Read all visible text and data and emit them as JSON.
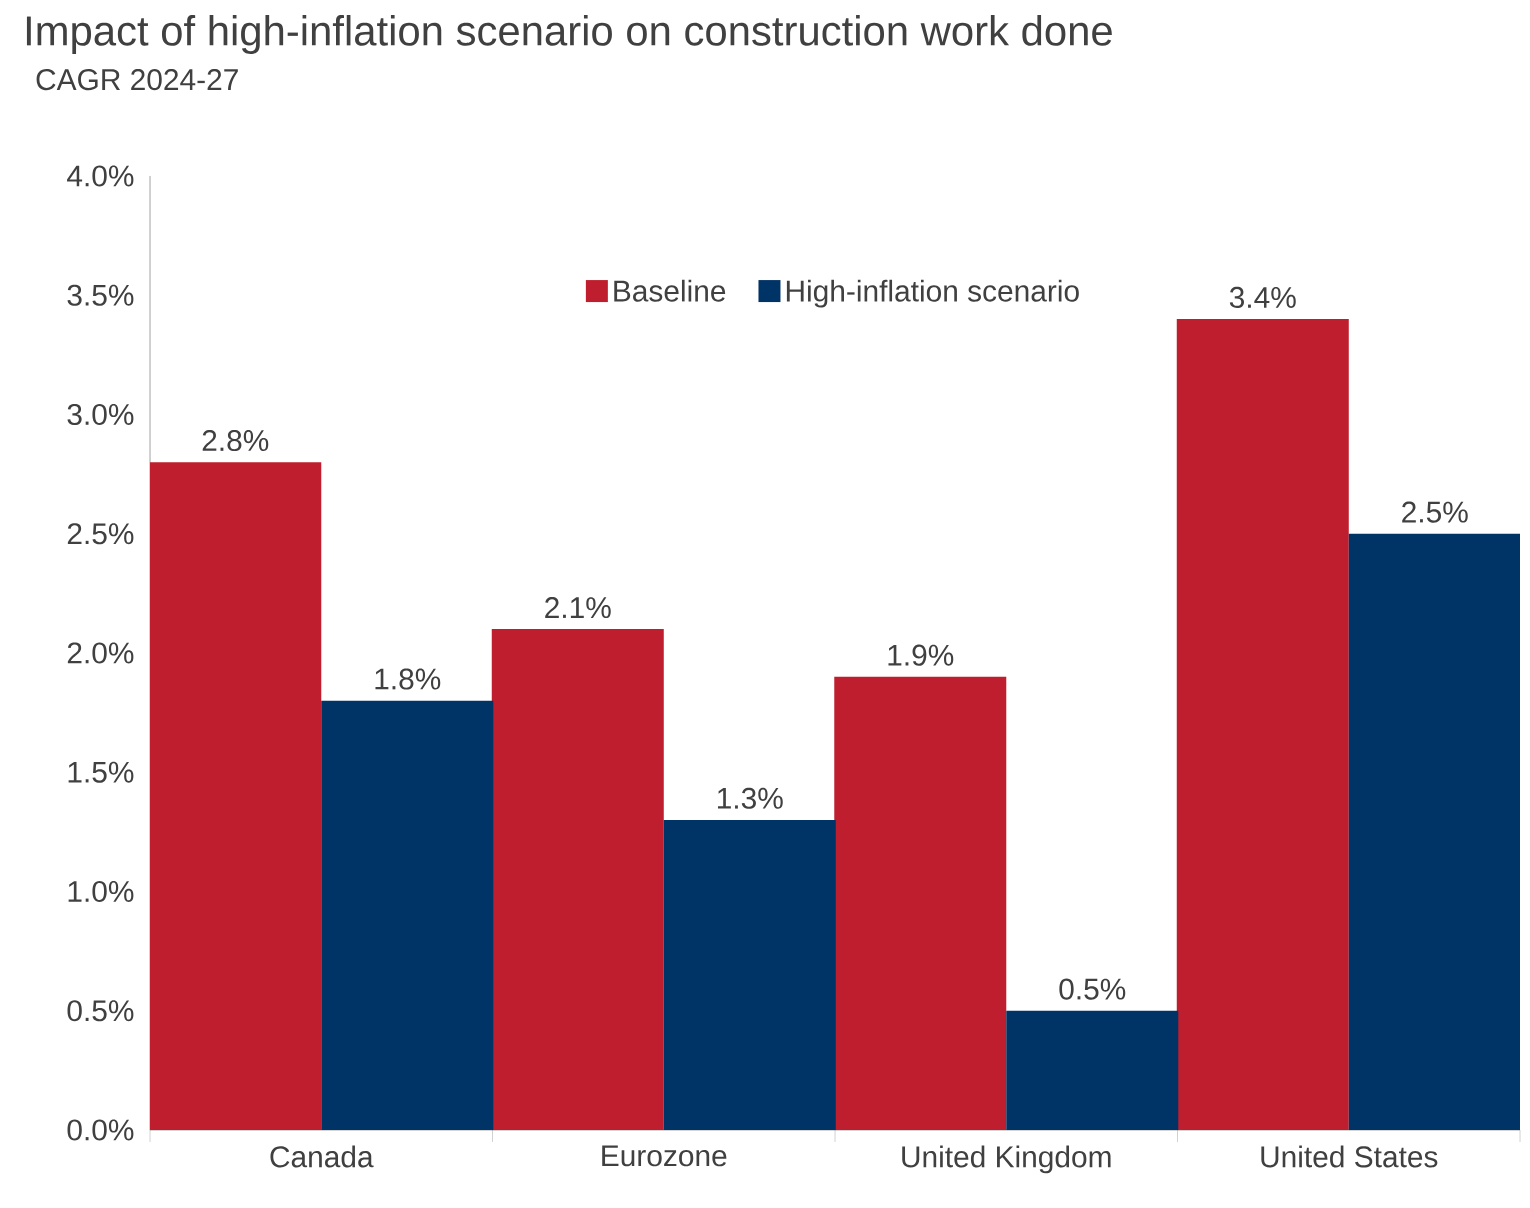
{
  "chart_data": {
    "type": "bar",
    "title": "Impact of high-inflation scenario on construction work done",
    "subtitle": "CAGR 2024-27",
    "categories": [
      "Canada",
      "Eurozone",
      "United Kingdom",
      "United States"
    ],
    "series": [
      {
        "name": "Baseline",
        "color": "#be1e2d",
        "values": [
          2.8,
          2.1,
          1.9,
          3.4
        ],
        "value_labels": [
          "2.8%",
          "2.1%",
          "1.9%",
          "3.4%"
        ]
      },
      {
        "name": "High-inflation scenario",
        "color": "#003366",
        "values": [
          1.8,
          1.3,
          0.5,
          2.5
        ],
        "value_labels": [
          "1.8%",
          "1.3%",
          "0.5%",
          "2.5%"
        ]
      }
    ],
    "ylim": [
      0,
      4
    ],
    "yticks": [
      {
        "value": 0,
        "label": "0.0%"
      },
      {
        "value": 0.5,
        "label": "0.5%"
      },
      {
        "value": 1,
        "label": "1.0%"
      },
      {
        "value": 1.5,
        "label": "1.5%"
      },
      {
        "value": 2,
        "label": "2.0%"
      },
      {
        "value": 2.5,
        "label": "2.5%"
      },
      {
        "value": 3,
        "label": "3.0%"
      },
      {
        "value": 3.5,
        "label": "3.5%"
      },
      {
        "value": 4,
        "label": "4.0%"
      }
    ],
    "legend": "top",
    "grid": false
  }
}
